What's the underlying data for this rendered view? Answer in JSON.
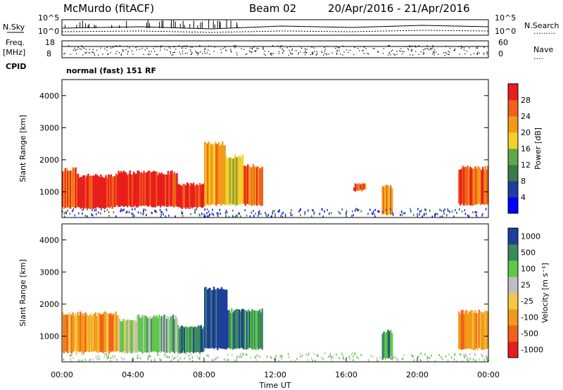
{
  "header": {
    "station": "McMurdo (fitACF)",
    "beam": "Beam 02",
    "date_range": "20/Apr/2016 - 21/Apr/2016"
  },
  "strip": {
    "left_top": "N.Sky",
    "left_freq_1": "Freq.",
    "left_freq_2": "[MHz]",
    "left_cpid": "CPID",
    "tick_10e5": "10^5",
    "tick_10e0": "10^0",
    "freq_hi": "18",
    "freq_lo": "8",
    "right_top": "N.Search",
    "right_dots": ".........",
    "nave_hi": "60",
    "nave_lo": "0",
    "nave_label": "Nave",
    "nave_dots": "....",
    "cpid_text": "normal (fast) 151 RF"
  },
  "colors": {
    "power": [
      "#0000ff",
      "#1e3e9e",
      "#3c7a4a",
      "#5fa84a",
      "#f2d22a",
      "#f39a1a",
      "#f0621a",
      "#e81e1e"
    ],
    "velocity": [
      "#e81e1e",
      "#f0621a",
      "#f39a1a",
      "#f2c84a",
      "#bfbfbf",
      "#5fc84a",
      "#3c8a5a",
      "#1e3e9e"
    ]
  },
  "chart_data": [
    {
      "type": "heatmap",
      "panel": "power",
      "ylabel": "Slant Range [km]",
      "xlabel": "",
      "ylim": [
        200,
        4500
      ],
      "yticks": [
        "1000",
        "2000",
        "3000",
        "4000"
      ],
      "colorbar_label": "Power [dB]",
      "colorbar_ticks": [
        "4",
        "8",
        "12",
        "16",
        "20",
        "24",
        "28"
      ],
      "bands": [
        {
          "t0": 0.0,
          "t1": 0.8,
          "r0": 500,
          "r1": 1700,
          "level": 6
        },
        {
          "t0": 0.8,
          "t1": 3.0,
          "r0": 500,
          "r1": 1500,
          "level": 7
        },
        {
          "t0": 3.0,
          "t1": 6.5,
          "r0": 550,
          "r1": 1600,
          "level": 7
        },
        {
          "t0": 6.5,
          "t1": 8.0,
          "r0": 500,
          "r1": 1250,
          "level": 7
        },
        {
          "t0": 8.0,
          "t1": 9.2,
          "r0": 600,
          "r1": 2500,
          "level": 5
        },
        {
          "t0": 9.2,
          "t1": 10.2,
          "r0": 600,
          "r1": 2100,
          "level": 4
        },
        {
          "t0": 10.2,
          "t1": 11.3,
          "r0": 600,
          "r1": 1800,
          "level": 6
        },
        {
          "t0": 22.3,
          "t1": 24.0,
          "r0": 600,
          "r1": 1750,
          "level": 6
        },
        {
          "t0": 18.0,
          "t1": 18.6,
          "r0": 300,
          "r1": 1150,
          "level": 5
        },
        {
          "t0": 16.4,
          "t1": 17.1,
          "r0": 1050,
          "r1": 1200,
          "level": 6
        }
      ]
    },
    {
      "type": "heatmap",
      "panel": "velocity",
      "ylabel": "Slant Range [km]",
      "xlabel": "Time UT",
      "ylim": [
        200,
        4500
      ],
      "yticks": [
        "1000",
        "2000",
        "3000",
        "4000"
      ],
      "xticks": [
        "00:00",
        "04:00",
        "08:00",
        "12:00",
        "16:00",
        "20:00",
        "00:00"
      ],
      "colorbar_label": "Velocity [m s⁻¹]",
      "colorbar_ticks": [
        "1000",
        "500",
        "100",
        "25",
        "-25",
        "-100",
        "-500",
        "-1000"
      ],
      "bands": [
        {
          "t0": 0.0,
          "t1": 3.2,
          "r0": 500,
          "r1": 1700,
          "level": 2
        },
        {
          "t0": 3.2,
          "t1": 4.2,
          "r0": 500,
          "r1": 1500,
          "level": 4
        },
        {
          "t0": 4.2,
          "t1": 6.5,
          "r0": 500,
          "r1": 1600,
          "level": 5
        },
        {
          "t0": 6.5,
          "t1": 8.0,
          "r0": 500,
          "r1": 1300,
          "level": 6
        },
        {
          "t0": 8.0,
          "t1": 9.3,
          "r0": 600,
          "r1": 2500,
          "level": 7
        },
        {
          "t0": 9.3,
          "t1": 11.3,
          "r0": 600,
          "r1": 1800,
          "level": 6
        },
        {
          "t0": 22.3,
          "t1": 24.0,
          "r0": 600,
          "r1": 1750,
          "level": 2
        },
        {
          "t0": 18.0,
          "t1": 18.6,
          "r0": 300,
          "r1": 1150,
          "level": 6
        }
      ]
    }
  ]
}
